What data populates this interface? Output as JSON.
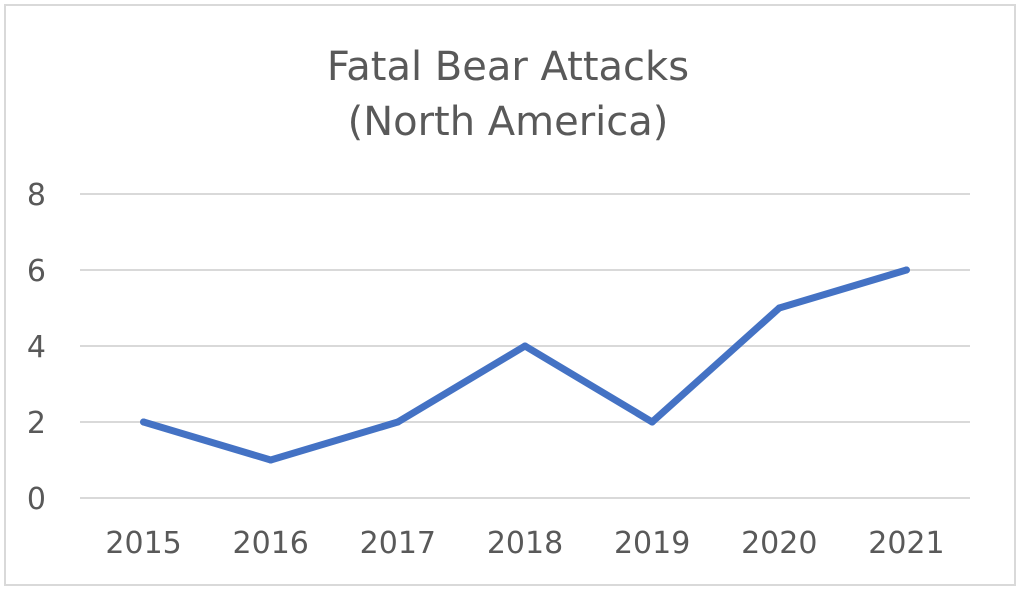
{
  "chart_data": {
    "type": "line",
    "title": "Fatal Bear Attacks",
    "subtitle": "(North America)",
    "categories": [
      "2015",
      "2016",
      "2017",
      "2018",
      "2019",
      "2020",
      "2021"
    ],
    "values": [
      2,
      1,
      2,
      4,
      2,
      5,
      6
    ],
    "ylim": [
      0,
      8
    ],
    "yticks": [
      0,
      2,
      4,
      6,
      8
    ],
    "xlabel": "",
    "ylabel": "",
    "grid": true,
    "legend": "none",
    "line_color": "#4472c4"
  }
}
